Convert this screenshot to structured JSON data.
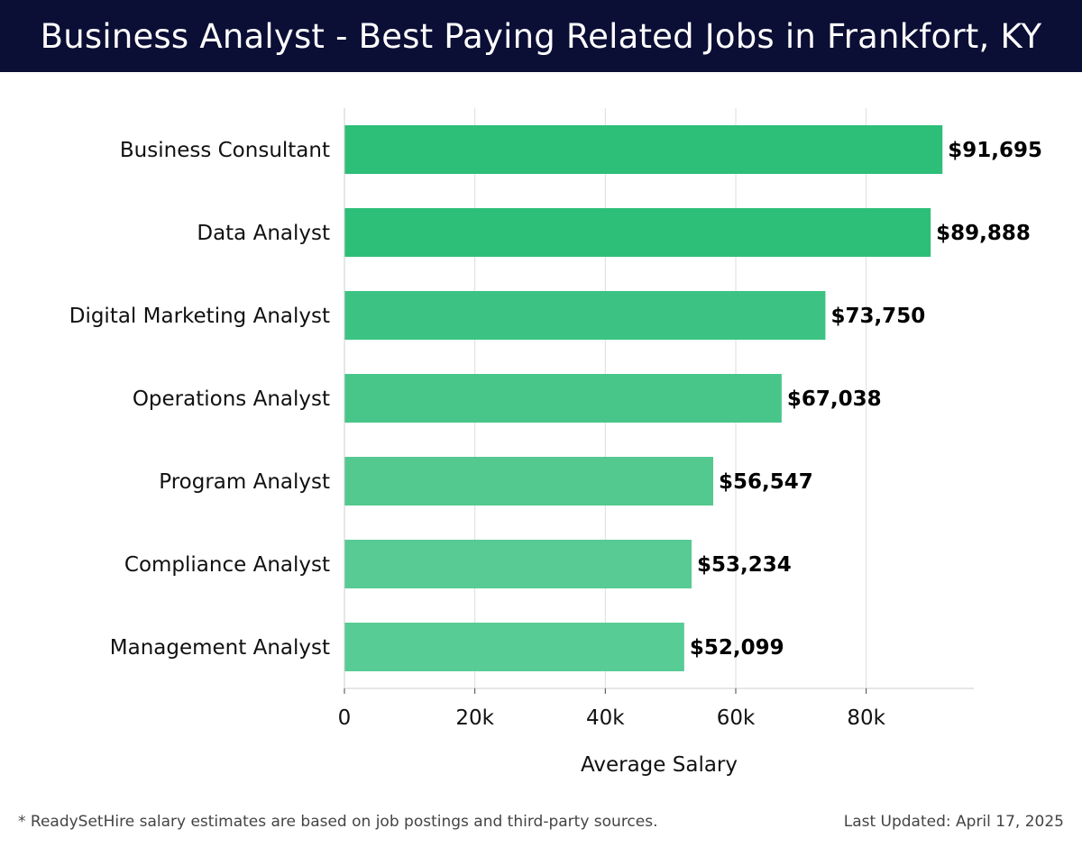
{
  "header": {
    "title": "Business Analyst - Best Paying Related Jobs in Frankfort, KY"
  },
  "chart_data": {
    "type": "bar",
    "orientation": "horizontal",
    "categories": [
      "Business Consultant",
      "Data Analyst",
      "Digital Marketing Analyst",
      "Operations Analyst",
      "Program Analyst",
      "Compliance Analyst",
      "Management Analyst"
    ],
    "values": [
      91695,
      89888,
      73750,
      67038,
      56547,
      53234,
      52099
    ],
    "value_labels": [
      "$91,695",
      "$89,888",
      "$73,750",
      "$67,038",
      "$56,547",
      "$53,234",
      "$52,099"
    ],
    "bar_colors": [
      "#2dbe78",
      "#2dbe78",
      "#3cc383",
      "#48c68a",
      "#53c98f",
      "#57cb93",
      "#58cc95"
    ],
    "xlabel": "Average Salary",
    "ylabel": "",
    "xlim": [
      0,
      96500
    ],
    "x_ticks": [
      0,
      20000,
      40000,
      60000,
      80000
    ],
    "x_tick_labels": [
      "0",
      "20k",
      "40k",
      "60k",
      "80k"
    ],
    "grid": true
  },
  "footer": {
    "note": "* ReadySetHire salary estimates are based on job postings and third-party sources.",
    "updated": "Last Updated: April 17, 2025"
  }
}
